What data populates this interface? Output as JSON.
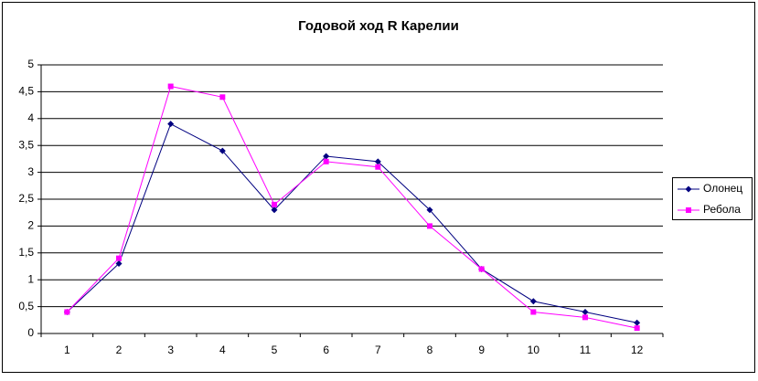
{
  "chart_data": {
    "type": "line",
    "title": "Годовой ход R Карелии",
    "categories": [
      "1",
      "2",
      "3",
      "4",
      "5",
      "6",
      "7",
      "8",
      "9",
      "10",
      "11",
      "12"
    ],
    "series": [
      {
        "name": "Олонец",
        "color": "#000080",
        "marker": "diamond",
        "values": [
          0.4,
          1.3,
          3.9,
          3.4,
          2.3,
          3.3,
          3.2,
          2.3,
          1.2,
          0.6,
          0.4,
          0.2
        ]
      },
      {
        "name": "Ребола",
        "color": "#ff00ff",
        "marker": "square",
        "values": [
          0.4,
          1.4,
          4.6,
          4.4,
          2.4,
          3.2,
          3.1,
          2.0,
          1.2,
          0.4,
          0.3,
          0.1
        ]
      }
    ],
    "ylim": [
      0,
      5
    ],
    "yticks": [
      0,
      {
        "value": 0.5,
        "label": "0,5"
      },
      1,
      {
        "value": 1.5,
        "label": "1,5"
      },
      2,
      {
        "value": 2.5,
        "label": "2,5"
      },
      3,
      {
        "value": 3.5,
        "label": "3,5"
      },
      4,
      {
        "value": 4.5,
        "label": "4,5"
      },
      5
    ],
    "grid": true,
    "legend": "right"
  }
}
